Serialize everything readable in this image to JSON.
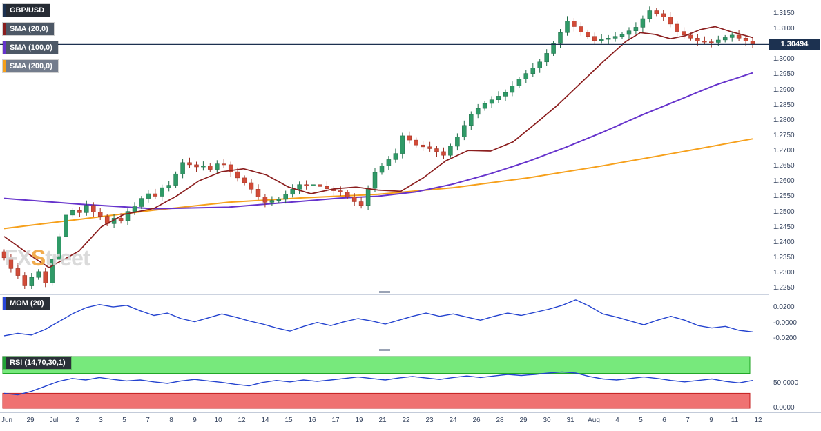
{
  "header": {
    "pair": "GBP/USD"
  },
  "watermark": {
    "fx": "FX",
    "s": "S",
    "treet": "treet"
  },
  "last_price": {
    "value": "1.30494",
    "numeric": 1.30494,
    "color": "#1c3150"
  },
  "legends": {
    "main": [
      {
        "label": "GBP/USD",
        "stripe": "#1c3150",
        "bg": "#262b33"
      },
      {
        "label": "SMA (20,0)",
        "stripe": "#8b1e1e",
        "bg": "#4d5866"
      },
      {
        "label": "SMA (100,0)",
        "stripe": "#6633cc",
        "bg": "#4d5866"
      },
      {
        "label": "SMA (200,0)",
        "stripe": "#f6a01b",
        "bg": "#737c8c"
      }
    ],
    "mom": {
      "label": "MOM (20)",
      "stripe": "#2946d8",
      "bg": "#2a3038"
    },
    "rsi": {
      "label": "RSI (14,70,30,1)",
      "stripe": "#22a336",
      "bg": "#2a3038"
    }
  },
  "axes": {
    "price_labels": [
      "1.3150",
      "1.3100",
      "1.3050",
      "1.3000",
      "1.2950",
      "1.2900",
      "1.2850",
      "1.2800",
      "1.2750",
      "1.2700",
      "1.2650",
      "1.2600",
      "1.2550",
      "1.2500",
      "1.2450",
      "1.2400",
      "1.2350",
      "1.2300",
      "1.2250"
    ],
    "x_labels": [
      "Jun",
      "29",
      "Jul",
      "2",
      "3",
      "5",
      "7",
      "8",
      "9",
      "10",
      "12",
      "14",
      "15",
      "16",
      "17",
      "19",
      "21",
      "22",
      "23",
      "24",
      "26",
      "28",
      "29",
      "30",
      "31",
      "Aug",
      "4",
      "5",
      "6",
      "7",
      "9",
      "11",
      "12"
    ],
    "mom": {
      "labels": [
        "0.0200",
        "-0.0000",
        "-0.0200"
      ],
      "values": [
        0.02,
        0,
        -0.02
      ]
    },
    "rsi": {
      "labels": [
        "50.0000",
        "0.0000"
      ],
      "values": [
        50,
        0
      ]
    }
  },
  "chart_data": [
    {
      "type": "candlestick",
      "title": "GBP/USD",
      "ylim": [
        1.2248,
        1.3195
      ],
      "last_price": 1.30494,
      "first_open": 1.237,
      "up_color": "#2f9a67",
      "up_border": "#1e6b47",
      "down_color": "#d14b38",
      "down_border": "#9c3023",
      "closes": [
        1.235,
        1.2315,
        1.2292,
        1.2258,
        1.2286,
        1.2305,
        1.2268,
        1.2345,
        1.242,
        1.249,
        1.2505,
        1.2498,
        1.2522,
        1.25,
        1.2486,
        1.2462,
        1.248,
        1.2472,
        1.2502,
        1.2518,
        1.2545,
        1.256,
        1.2552,
        1.258,
        1.2588,
        1.2625,
        1.2662,
        1.2655,
        1.2648,
        1.2652,
        1.264,
        1.2658,
        1.2655,
        1.2632,
        1.2612,
        1.2596,
        1.2575,
        1.255,
        1.2532,
        1.2538,
        1.2542,
        1.2558,
        1.2575,
        1.259,
        1.2586,
        1.259,
        1.2584,
        1.2576,
        1.257,
        1.2565,
        1.255,
        1.2534,
        1.2522,
        1.2578,
        1.263,
        1.2652,
        1.2672,
        1.2692,
        1.275,
        1.2736,
        1.272,
        1.2714,
        1.2708,
        1.2698,
        1.2686,
        1.2716,
        1.2746,
        1.2784,
        1.282,
        1.284,
        1.2856,
        1.2868,
        1.288,
        1.2892,
        1.2914,
        1.2936,
        1.2954,
        1.2972,
        1.2992,
        1.302,
        1.3052,
        1.3088,
        1.3126,
        1.3108,
        1.309,
        1.3076,
        1.3062,
        1.3066,
        1.307,
        1.3076,
        1.3082,
        1.3094,
        1.3106,
        1.3134,
        1.316,
        1.315,
        1.314,
        1.3116,
        1.3092,
        1.308,
        1.307,
        1.306,
        1.3058,
        1.3056,
        1.3064,
        1.3072,
        1.308,
        1.307,
        1.306,
        1.3049
      ],
      "series": [
        {
          "name": "SMA (20,0)",
          "color": "#8b1e1e",
          "points": [
            [
              0,
              1.242
            ],
            [
              0.04,
              1.235
            ],
            [
              0.06,
              1.2318
            ],
            [
              0.1,
              1.2372
            ],
            [
              0.13,
              1.2452
            ],
            [
              0.16,
              1.2492
            ],
            [
              0.2,
              1.2512
            ],
            [
              0.23,
              1.2552
            ],
            [
              0.26,
              1.2602
            ],
            [
              0.29,
              1.2632
            ],
            [
              0.32,
              1.2642
            ],
            [
              0.35,
              1.2622
            ],
            [
              0.38,
              1.2582
            ],
            [
              0.41,
              1.256
            ],
            [
              0.44,
              1.2576
            ],
            [
              0.47,
              1.2582
            ],
            [
              0.5,
              1.2572
            ],
            [
              0.53,
              1.2568
            ],
            [
              0.56,
              1.2612
            ],
            [
              0.59,
              1.2668
            ],
            [
              0.62,
              1.2702
            ],
            [
              0.65,
              1.27
            ],
            [
              0.68,
              1.273
            ],
            [
              0.71,
              1.279
            ],
            [
              0.74,
              1.2852
            ],
            [
              0.77,
              1.2922
            ],
            [
              0.8,
              1.2992
            ],
            [
              0.83,
              1.3058
            ],
            [
              0.85,
              1.3088
            ],
            [
              0.87,
              1.3082
            ],
            [
              0.89,
              1.3068
            ],
            [
              0.91,
              1.3078
            ],
            [
              0.93,
              1.3098
            ],
            [
              0.95,
              1.3108
            ],
            [
              0.97,
              1.3092
            ],
            [
              1,
              1.3072
            ]
          ]
        },
        {
          "name": "SMA (100,0)",
          "color": "#6633cc",
          "points": [
            [
              0,
              1.2545
            ],
            [
              0.1,
              1.2526
            ],
            [
              0.2,
              1.2511
            ],
            [
              0.3,
              1.2516
            ],
            [
              0.35,
              1.2526
            ],
            [
              0.4,
              1.2536
            ],
            [
              0.45,
              1.2546
            ],
            [
              0.5,
              1.2552
            ],
            [
              0.55,
              1.2566
            ],
            [
              0.6,
              1.2592
            ],
            [
              0.65,
              1.2626
            ],
            [
              0.7,
              1.2666
            ],
            [
              0.75,
              1.2712
            ],
            [
              0.8,
              1.2762
            ],
            [
              0.85,
              1.2816
            ],
            [
              0.9,
              1.2866
            ],
            [
              0.95,
              1.2916
            ],
            [
              1,
              1.2956
            ]
          ]
        },
        {
          "name": "SMA (200,0)",
          "color": "#f6a01b",
          "points": [
            [
              0,
              1.2446
            ],
            [
              0.1,
              1.2476
            ],
            [
              0.2,
              1.2506
            ],
            [
              0.3,
              1.2532
            ],
            [
              0.4,
              1.2547
            ],
            [
              0.5,
              1.2558
            ],
            [
              0.6,
              1.258
            ],
            [
              0.7,
              1.2612
            ],
            [
              0.8,
              1.2652
            ],
            [
              0.9,
              1.2695
            ],
            [
              1,
              1.274
            ]
          ]
        }
      ]
    },
    {
      "type": "line",
      "name": "MOM (20)",
      "color": "#2443cf",
      "ylim": [
        -0.032,
        0.037
      ],
      "values": [
        -0.016,
        -0.013,
        -0.015,
        -0.008,
        0.002,
        0.012,
        0.02,
        0.024,
        0.021,
        0.023,
        0.016,
        0.01,
        0.013,
        0.006,
        0.002,
        0.007,
        0.012,
        0.008,
        0.003,
        -0.001,
        -0.006,
        -0.01,
        -0.004,
        0.001,
        -0.003,
        0.002,
        0.006,
        0.003,
        -0.001,
        0.004,
        0.009,
        0.013,
        0.009,
        0.012,
        0.008,
        0.004,
        0.009,
        0.013,
        0.01,
        0.014,
        0.018,
        0.023,
        0.03,
        0.022,
        0.012,
        0.008,
        0.003,
        -0.002,
        0.004,
        0.009,
        0.004,
        -0.003,
        -0.006,
        -0.004,
        -0.009,
        -0.011
      ]
    },
    {
      "type": "line",
      "name": "RSI (14,70,30,1)",
      "color": "#2443cf",
      "ylim": [
        0,
        110
      ],
      "overbought": 70,
      "oversold": 30,
      "bands": [
        {
          "from": 70,
          "to": 104,
          "color": "#77e97c",
          "border": "#18a01e"
        },
        {
          "from": 0,
          "to": 30,
          "color": "#ef7272",
          "border": "#c41f1f"
        }
      ],
      "values": [
        30,
        27,
        34,
        44,
        54,
        60,
        57,
        62,
        58,
        55,
        57,
        53,
        50,
        55,
        58,
        55,
        52,
        48,
        45,
        52,
        56,
        53,
        57,
        54,
        57,
        60,
        63,
        60,
        57,
        61,
        64,
        61,
        58,
        62,
        65,
        62,
        65,
        68,
        66,
        68,
        71,
        73,
        71,
        64,
        59,
        57,
        60,
        63,
        60,
        56,
        53,
        56,
        59,
        54,
        51,
        56
      ]
    }
  ]
}
